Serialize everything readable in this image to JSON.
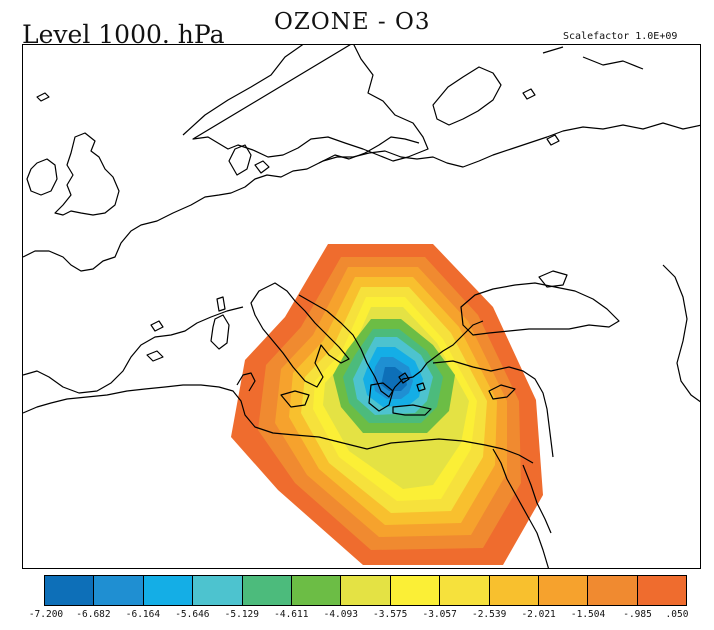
{
  "header": {
    "level_label": "Level 1000. hPa",
    "species_label": "OZONE - O3",
    "scalefactor_label": "Scalefactor  1.0E+09"
  },
  "colorbar": {
    "colors": [
      "#0d6fb8",
      "#1f8fd2",
      "#14aee6",
      "#4dc3cf",
      "#4cbb7c",
      "#6cbd45",
      "#e4e244",
      "#fbef36",
      "#f6e13c",
      "#f8c02e",
      "#f6a22d",
      "#f08a30",
      "#ef6c2e"
    ],
    "tick_labels": [
      "-7.200",
      "-6.682",
      "-6.164",
      "-5.646",
      "-5.129",
      "-4.611",
      "-4.093",
      "-3.575",
      "-3.057",
      "-2.539",
      "-2.021",
      "-1.504",
      "-.985",
      ".050"
    ]
  },
  "map": {
    "region": "Europe-Mediterranean",
    "field_center": "Aegean Sea",
    "min_value": -7.2,
    "max_value": 0.05
  }
}
